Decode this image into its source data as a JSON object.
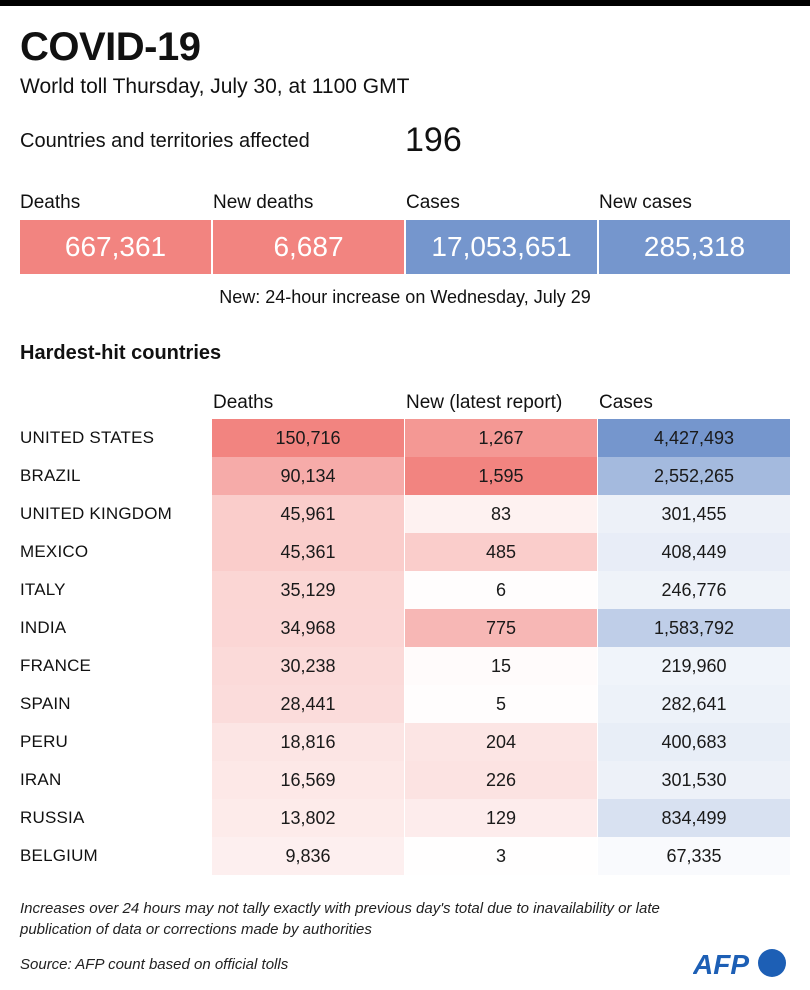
{
  "header": {
    "title": "COVID-19",
    "subtitle": "World toll Thursday, July 30, at 1100 GMT",
    "affected_label": "Countries and territories affected",
    "affected_value": "196"
  },
  "kpis": [
    {
      "label": "Deaths",
      "value": "667,361",
      "color": "#f28480"
    },
    {
      "label": "New deaths",
      "value": "6,687",
      "color": "#f28480"
    },
    {
      "label": "Cases",
      "value": "17,053,651",
      "color": "#7596cd"
    },
    {
      "label": "New cases",
      "value": "285,318",
      "color": "#7596cd"
    }
  ],
  "kpi_note": "New: 24-hour increase on Wednesday, July 29",
  "chart_data": {
    "type": "table",
    "title": "Hardest-hit countries",
    "columns": [
      "Deaths",
      "New (latest report)",
      "Cases"
    ],
    "rows": [
      {
        "country": "UNITED STATES",
        "deaths": "150,716",
        "new": "1,267",
        "cases": "4,427,493",
        "deaths_n": 150716,
        "new_n": 1267,
        "cases_n": 4427493
      },
      {
        "country": "BRAZIL",
        "deaths": "90,134",
        "new": "1,595",
        "cases": "2,552,265",
        "deaths_n": 90134,
        "new_n": 1595,
        "cases_n": 2552265
      },
      {
        "country": "UNITED KINGDOM",
        "deaths": "45,961",
        "new": "83",
        "cases": "301,455",
        "deaths_n": 45961,
        "new_n": 83,
        "cases_n": 301455
      },
      {
        "country": "MEXICO",
        "deaths": "45,361",
        "new": "485",
        "cases": "408,449",
        "deaths_n": 45361,
        "new_n": 485,
        "cases_n": 408449
      },
      {
        "country": "ITALY",
        "deaths": "35,129",
        "new": "6",
        "cases": "246,776",
        "deaths_n": 35129,
        "new_n": 6,
        "cases_n": 246776
      },
      {
        "country": "INDIA",
        "deaths": "34,968",
        "new": "775",
        "cases": "1,583,792",
        "deaths_n": 34968,
        "new_n": 775,
        "cases_n": 1583792
      },
      {
        "country": "FRANCE",
        "deaths": "30,238",
        "new": "15",
        "cases": "219,960",
        "deaths_n": 30238,
        "new_n": 15,
        "cases_n": 219960
      },
      {
        "country": "SPAIN",
        "deaths": "28,441",
        "new": "5",
        "cases": "282,641",
        "deaths_n": 28441,
        "new_n": 5,
        "cases_n": 282641
      },
      {
        "country": "PERU",
        "deaths": "18,816",
        "new": "204",
        "cases": "400,683",
        "deaths_n": 18816,
        "new_n": 204,
        "cases_n": 400683
      },
      {
        "country": "IRAN",
        "deaths": "16,569",
        "new": "226",
        "cases": "301,530",
        "deaths_n": 16569,
        "new_n": 226,
        "cases_n": 301530
      },
      {
        "country": "RUSSIA",
        "deaths": "13,802",
        "new": "129",
        "cases": "834,499",
        "deaths_n": 13802,
        "new_n": 129,
        "cases_n": 834499
      },
      {
        "country": "BELGIUM",
        "deaths": "9,836",
        "new": "3",
        "cases": "67,335",
        "deaths_n": 9836,
        "new_n": 3,
        "cases_n": 67335
      }
    ],
    "colors": {
      "red": "#f28480",
      "blue": "#7596cd"
    }
  },
  "footer": {
    "note": "Increases over 24 hours may not tally exactly with previous day's total due to inavailability or late publication of data or corrections made by authorities",
    "source": "Source: AFP count based on official tolls",
    "logo_text": "AFP"
  }
}
